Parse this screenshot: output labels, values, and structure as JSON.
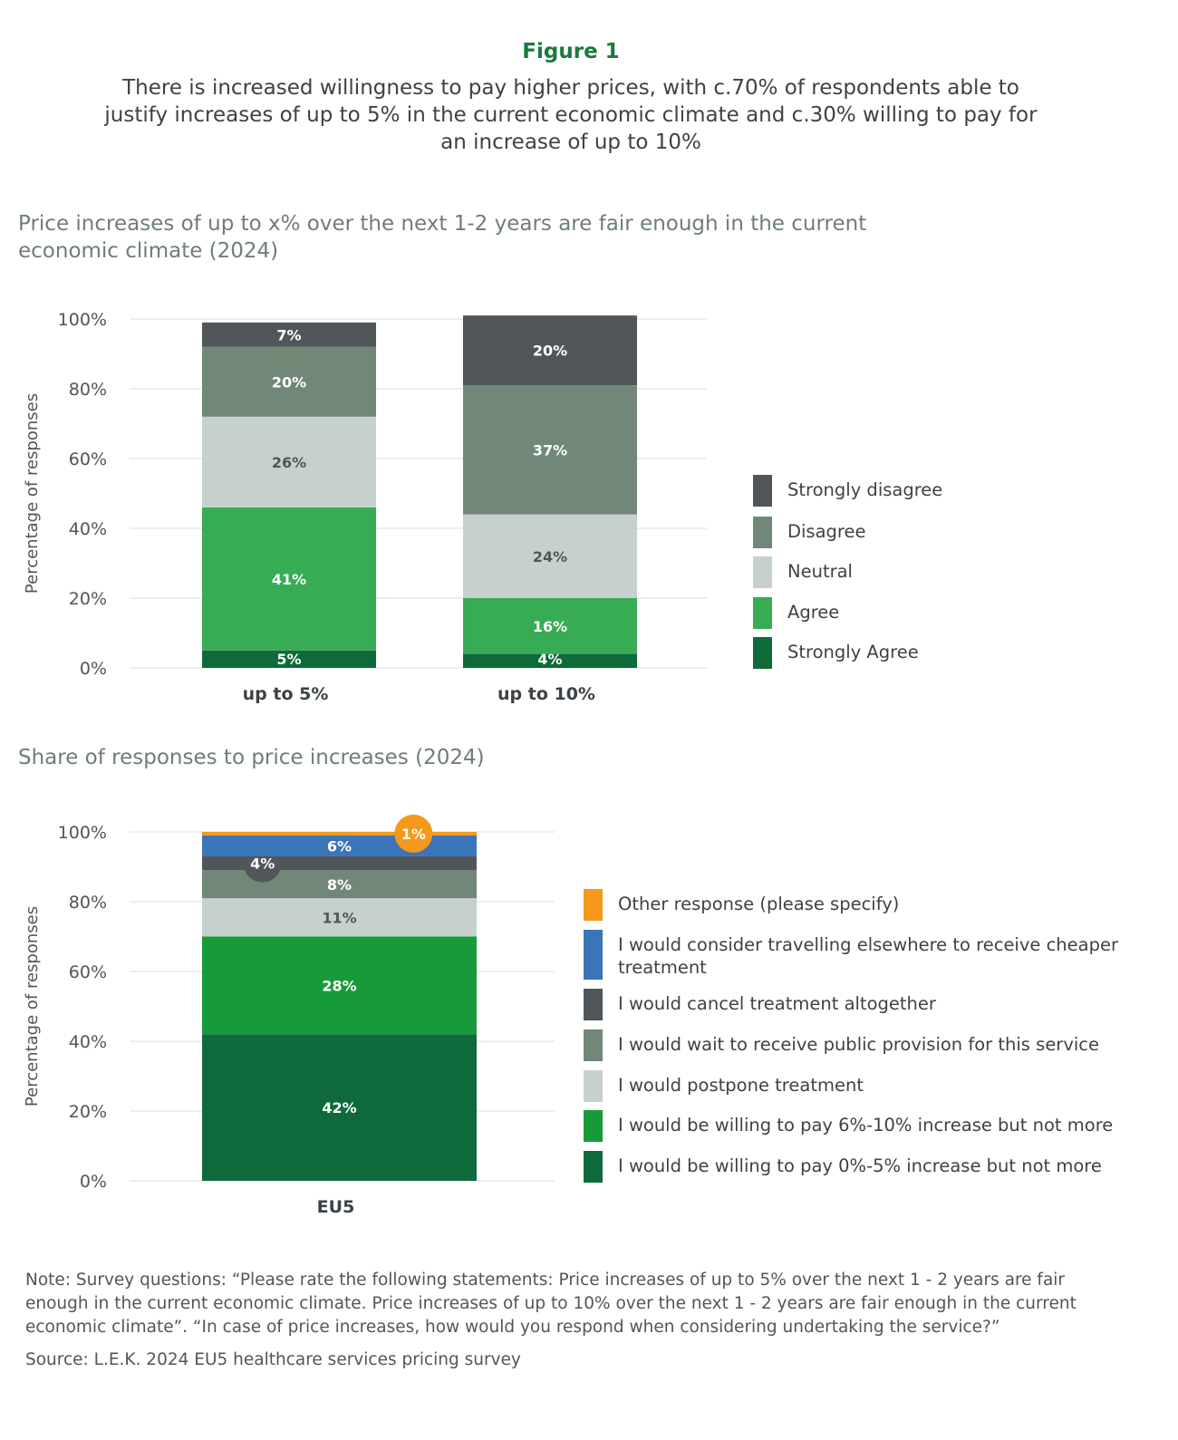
{
  "figure_label": "Figure 1",
  "figure_title": "There is increased willingness to pay higher prices, with c.70% of respondents able to justify increases of up to 5% in the current economic climate and c.30% willing to pay for an increase of up to 10%",
  "chart_data": [
    {
      "type": "bar",
      "stacked": true,
      "title": "Price increases of up to x% over the next 1-2 years are fair enough in the current economic climate (2024)",
      "ylabel": "Percentage of responses",
      "xlabel": "",
      "ylim": [
        0,
        100
      ],
      "yticks": [
        "0%",
        "20%",
        "40%",
        "60%",
        "80%",
        "100%"
      ],
      "grid": true,
      "legend_position": "right",
      "categories": [
        "up to 5%",
        "up to 10%"
      ],
      "series": [
        {
          "name": "Strongly Agree",
          "color": "#0e6a39",
          "label_color": "#ffffff",
          "values": [
            5,
            4
          ]
        },
        {
          "name": "Agree",
          "color": "#38ab55",
          "label_color": "#ffffff",
          "values": [
            41,
            16
          ]
        },
        {
          "name": "Neutral",
          "color": "#c6d1cd",
          "label_color": "#50565a",
          "values": [
            26,
            24
          ]
        },
        {
          "name": "Disagree",
          "color": "#718878",
          "label_color": "#ffffff",
          "values": [
            20,
            37
          ]
        },
        {
          "name": "Strongly disagree",
          "color": "#50565a",
          "label_color": "#ffffff",
          "values": [
            7,
            20
          ]
        }
      ]
    },
    {
      "type": "bar",
      "stacked": true,
      "title": "Share of responses to price increases (2024)",
      "ylabel": "Percentage of responses",
      "xlabel": "",
      "ylim": [
        0,
        100
      ],
      "yticks": [
        "0%",
        "20%",
        "40%",
        "60%",
        "80%",
        "100%"
      ],
      "grid": true,
      "legend_position": "right",
      "categories": [
        "EU5"
      ],
      "series": [
        {
          "name": "I would be willing to pay 0%-5% increase but not more",
          "color": "#0e6a3b",
          "label_color": "#ffffff",
          "values": [
            42
          ]
        },
        {
          "name": "I would be willing to pay 6%-10% increase but not more",
          "color": "#179b3a",
          "label_color": "#ffffff",
          "values": [
            28
          ]
        },
        {
          "name": "I would postpone treatment",
          "color": "#c6d1cd",
          "label_color": "#50565a",
          "values": [
            11
          ]
        },
        {
          "name": "I would wait to receive public provision for this service",
          "color": "#718878",
          "label_color": "#ffffff",
          "values": [
            8
          ]
        },
        {
          "name": "I would cancel treatment altogether",
          "color": "#50565a",
          "label_color": "#ffffff",
          "values": [
            4
          ],
          "callout": true
        },
        {
          "name": "I would consider travelling elsewhere to receive cheaper treatment",
          "color": "#3a74b9",
          "label_color": "#ffffff",
          "values": [
            6
          ]
        },
        {
          "name": "Other response (please specify)",
          "color": "#f4991a",
          "label_color": "#ffffff",
          "values": [
            1
          ],
          "callout": true
        }
      ]
    }
  ],
  "note": "Note: Survey questions: “Please rate the following statements: Price increases of up to 5% over the next 1 - 2 years are fair enough in the current economic climate. Price increases of up to 10% over the next 1 - 2 years are fair enough in the current economic climate”. “In case of price increases, how would you respond when considering undertaking the service?”",
  "source": "Source: L.E.K. 2024 EU5 healthcare services pricing survey"
}
